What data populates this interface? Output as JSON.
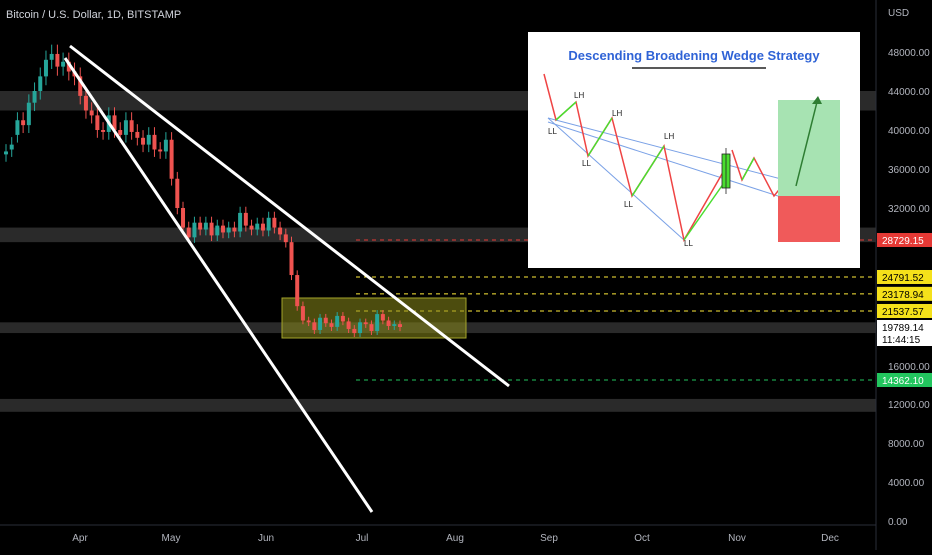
{
  "header": {
    "title": "Bitcoin / U.S. Dollar, 1D, BITSTAMP"
  },
  "axis": {
    "currency": "USD"
  },
  "chart_data": {
    "type": "candlestick",
    "title": "Bitcoin / U.S. Dollar, 1D, BITSTAMP",
    "ylabel": "USD",
    "ylim": [
      0,
      52000
    ],
    "y_ticks": [
      "48000.00",
      "44000.00",
      "40000.00",
      "36000.00",
      "32000.00",
      "16000.00",
      "12000.00",
      "8000.00",
      "4000.00",
      "0.00"
    ],
    "y_tick_values": [
      48000,
      44000,
      40000,
      36000,
      32000,
      16000,
      12000,
      8000,
      4000,
      0
    ],
    "x_ticks": [
      "Apr",
      "May",
      "Jun",
      "Jul",
      "Aug",
      "Sep",
      "Oct",
      "Nov",
      "Dec"
    ],
    "grid": false,
    "price_path": [
      [
        37500,
        37800
      ],
      [
        38000,
        38500
      ],
      [
        39500,
        41000
      ],
      [
        41000,
        40500
      ],
      [
        40500,
        42800
      ],
      [
        42800,
        44000
      ],
      [
        44000,
        45500
      ],
      [
        45500,
        47200
      ],
      [
        47200,
        47800
      ],
      [
        47800,
        46500
      ],
      [
        46500,
        47000
      ],
      [
        47000,
        46000
      ],
      [
        46000,
        45500
      ],
      [
        45500,
        43500
      ],
      [
        43500,
        42000
      ],
      [
        42000,
        41500
      ],
      [
        41500,
        40000
      ],
      [
        40000,
        39800
      ],
      [
        39800,
        41500
      ],
      [
        41500,
        40000
      ],
      [
        40000,
        39500
      ],
      [
        39500,
        41000
      ],
      [
        41000,
        39800
      ],
      [
        39800,
        39200
      ],
      [
        39200,
        38500
      ],
      [
        38500,
        39500
      ],
      [
        39500,
        38000
      ],
      [
        38000,
        37800
      ],
      [
        37800,
        39000
      ],
      [
        39000,
        35000
      ],
      [
        35000,
        32000
      ],
      [
        32000,
        30000
      ],
      [
        30000,
        29000
      ],
      [
        29000,
        30500
      ],
      [
        30500,
        29800
      ],
      [
        29800,
        30500
      ],
      [
        30500,
        29200
      ],
      [
        29200,
        30200
      ],
      [
        30200,
        29500
      ],
      [
        29500,
        30000
      ],
      [
        30000,
        29600
      ],
      [
        29600,
        31500
      ],
      [
        31500,
        30200
      ],
      [
        30200,
        29800
      ],
      [
        29800,
        30400
      ],
      [
        30400,
        29700
      ],
      [
        29700,
        31000
      ],
      [
        31000,
        30000
      ],
      [
        30000,
        29300
      ],
      [
        29300,
        28500
      ],
      [
        28500,
        25000
      ],
      [
        25000,
        22000
      ],
      [
        22000,
        20500
      ],
      [
        20500,
        20300
      ],
      [
        20300,
        19500
      ],
      [
        19500,
        20800
      ],
      [
        20800,
        20200
      ],
      [
        20200,
        19800
      ],
      [
        19800,
        21000
      ],
      [
        21000,
        20400
      ],
      [
        20400,
        19600
      ],
      [
        19600,
        19200
      ],
      [
        19200,
        20300
      ],
      [
        20300,
        20100
      ],
      [
        20100,
        19400
      ],
      [
        19400,
        21200
      ],
      [
        21200,
        20500
      ],
      [
        20500,
        19900
      ],
      [
        19900,
        20100
      ],
      [
        20100,
        19789
      ]
    ],
    "levels": [
      {
        "value": 28729.15,
        "label": "28729.15",
        "color": "#e53935",
        "style": "dashed"
      },
      {
        "value": 24791.52,
        "label": "24791.52",
        "color": "#ffeb3b",
        "style": "dashed"
      },
      {
        "value": 23178.94,
        "label": "23178.94",
        "color": "#ffeb3b",
        "style": "dashed"
      },
      {
        "value": 21537.57,
        "label": "21537.57",
        "color": "#ffeb3b",
        "style": "dashed"
      },
      {
        "value": 14362.1,
        "label": "14362.10",
        "color": "#22c55e",
        "style": "dashed"
      }
    ],
    "current_price": "19789.14",
    "countdown": "11:44:15",
    "zones": [
      {
        "from": 44000,
        "to": 42000
      },
      {
        "from": 30000,
        "to": 28500
      },
      {
        "from": 20300,
        "to": 19200
      },
      {
        "from": 12500,
        "to": 11200
      }
    ]
  },
  "inset": {
    "title": "Descending Broadening Wedge Strategy",
    "labels": [
      "LH",
      "LH",
      "LH",
      "LL",
      "LL",
      "LL",
      "LL"
    ],
    "colors": {
      "up": "#4ade30",
      "down": "#ef4444",
      "tp": "#a7e3b2",
      "sl": "#f05a5a",
      "line": "#7aa1e6"
    }
  },
  "colors": {
    "background": "#000000",
    "up": "#26a69a",
    "down": "#ef5350",
    "zone": "#2a2a2a",
    "highlight": "#8a8a1a"
  }
}
